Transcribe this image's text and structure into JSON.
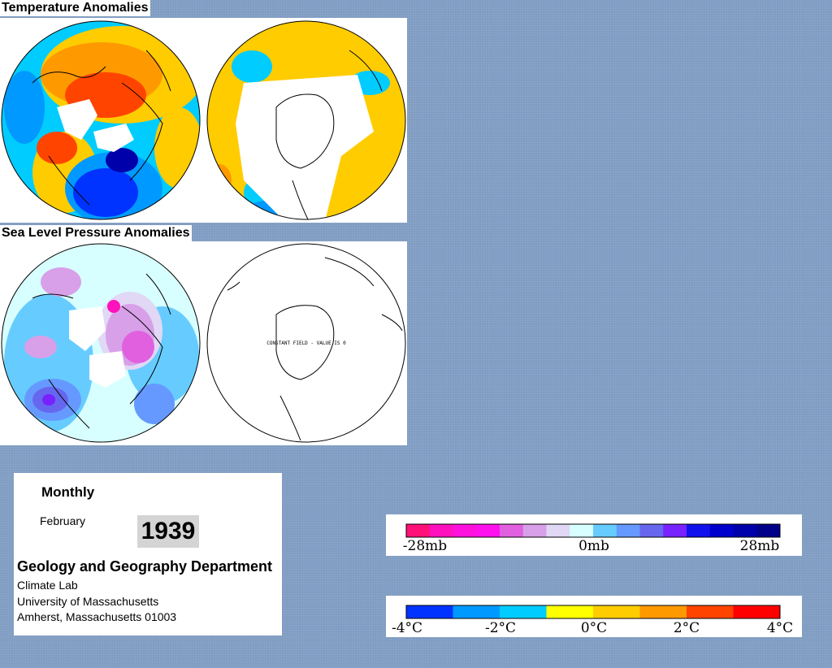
{
  "headers": {
    "temperature": "Temperature Anomalies",
    "pressure": "Sea Level Pressure Anomalies"
  },
  "maps": {
    "constant_field_note": "CONSTANT FIELD - VALUE IS 0"
  },
  "info": {
    "frequency": "Monthly",
    "month": "February",
    "year": "1939",
    "department": "Geology and Geography Department",
    "lab": "Climate Lab",
    "university": "University of Massachusetts",
    "address": "Amherst, Massachusetts 01003"
  },
  "pressure_legend": {
    "label_min": "-28mb",
    "label_mid": "0mb",
    "label_max": "28mb",
    "colors": [
      "#ff1177",
      "#ff11bb",
      "#ff11dd",
      "#ff11ee",
      "#e060e0",
      "#d8a0e8",
      "#e0d8f4",
      "#d8ffff",
      "#66ccff",
      "#6699ff",
      "#6666ee",
      "#7722ff",
      "#1111ee",
      "#0000cc",
      "#0000aa",
      "#000088"
    ]
  },
  "temperature_legend": {
    "labels": [
      "-4°C",
      "-2°C",
      "0°C",
      "2°C",
      "4°C"
    ],
    "colors": [
      "#0033ff",
      "#0099ff",
      "#00ccff",
      "#ffff00",
      "#ffcc00",
      "#ff9900",
      "#ff4400",
      "#ff0000"
    ]
  }
}
